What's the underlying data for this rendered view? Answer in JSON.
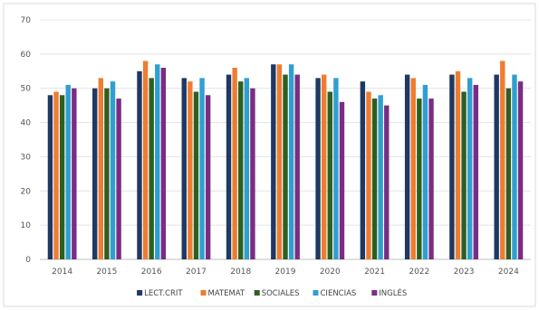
{
  "chart_data": {
    "type": "bar",
    "categories": [
      "2014",
      "2015",
      "2016",
      "2017",
      "2018",
      "2019",
      "2020",
      "2021",
      "2022",
      "2023",
      "2024"
    ],
    "series": [
      {
        "name": "LECT.CRIT",
        "color": "#1f3864",
        "values": [
          48,
          50,
          55,
          53,
          54,
          57,
          53,
          52,
          54,
          54,
          54
        ]
      },
      {
        "name": "MATEMAT",
        "color": "#ed7d31",
        "values": [
          49,
          53,
          58,
          52,
          56,
          57,
          54,
          49,
          53,
          55,
          58
        ]
      },
      {
        "name": "SOCIALES",
        "color": "#2e5f1f",
        "values": [
          48,
          50,
          53,
          49,
          52,
          54,
          49,
          47,
          47,
          49,
          50
        ]
      },
      {
        "name": "CIENCIAS",
        "color": "#2e9fd0",
        "values": [
          51,
          52,
          57,
          53,
          53,
          57,
          53,
          48,
          51,
          53,
          54
        ]
      },
      {
        "name": "INGLÉS",
        "color": "#7b2c83",
        "values": [
          50,
          47,
          56,
          48,
          50,
          54,
          46,
          45,
          47,
          51,
          52
        ]
      }
    ],
    "yticks": [
      "0",
      "10",
      "20",
      "30",
      "40",
      "50",
      "60",
      "70"
    ],
    "ylim": [
      0,
      70
    ],
    "grid": true,
    "legend_position": "bottom"
  }
}
